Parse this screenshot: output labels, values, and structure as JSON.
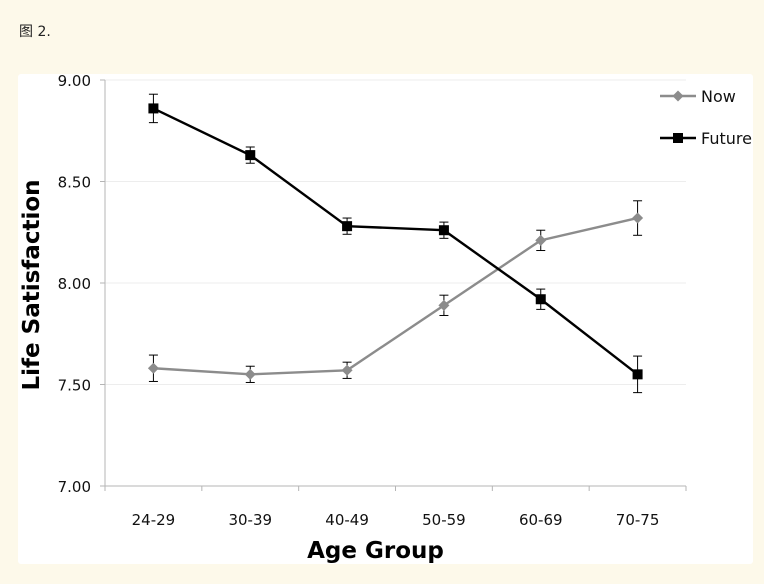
{
  "figure": {
    "caption": "图 2."
  },
  "chart_data": {
    "type": "line",
    "title": "",
    "xlabel": "Age Group",
    "ylabel": "Life Satisfaction",
    "categories": [
      "24-29",
      "30-39",
      "40-49",
      "50-59",
      "60-69",
      "70-75"
    ],
    "ylim": [
      7.0,
      9.0
    ],
    "yticks": [
      7.0,
      7.5,
      8.0,
      8.5,
      9.0
    ],
    "ytick_labels": [
      "7.00",
      "7.50",
      "8.00",
      "8.50",
      "9.00"
    ],
    "grid": true,
    "legend": "top-right",
    "series": [
      {
        "name": "Now",
        "color": "#8c8c8c",
        "marker": "diamond",
        "values": [
          7.58,
          7.55,
          7.57,
          7.89,
          8.21,
          8.32
        ],
        "errors": [
          0.065,
          0.04,
          0.04,
          0.05,
          0.05,
          0.085
        ]
      },
      {
        "name": "Future",
        "color": "#000000",
        "marker": "square",
        "values": [
          8.86,
          8.63,
          8.28,
          8.26,
          7.92,
          7.55
        ],
        "errors": [
          0.07,
          0.04,
          0.04,
          0.04,
          0.05,
          0.09
        ]
      }
    ]
  }
}
